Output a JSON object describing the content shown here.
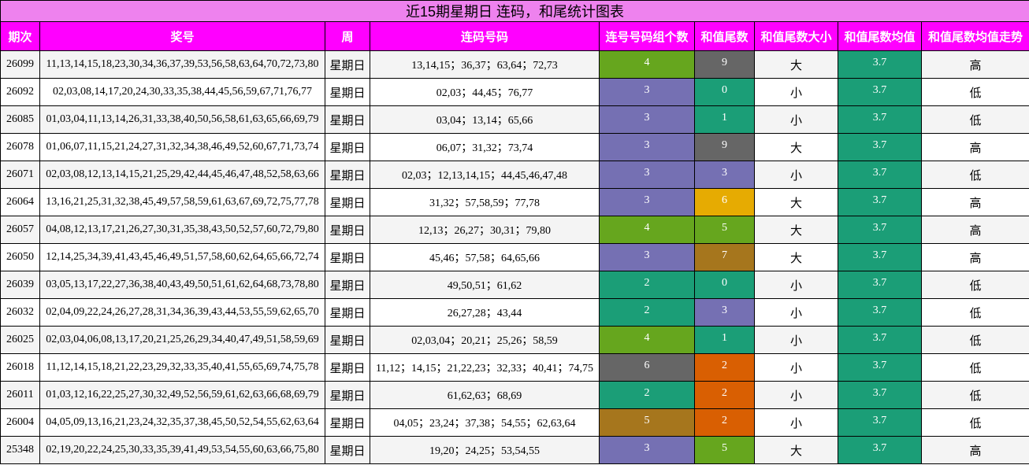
{
  "title": "近15期星期日 连码，和尾统计图表",
  "table": {
    "headers": [
      "期次",
      "奖号",
      "周",
      "连码号码",
      "连号号码组个数",
      "和值尾数",
      "和值尾数大小",
      "和值尾数均值",
      "和值尾数均值走势"
    ],
    "avg_color": "#1b9e77",
    "rows": [
      {
        "issue": "26099",
        "numbers": "11,13,14,15,18,23,30,34,36,37,39,53,56,58,63,64,70,72,73,80",
        "week": "星期日",
        "consecutive": "13,14,15；36,37；63,64；72,73",
        "count": 4,
        "count_color": "#66a61e",
        "tail": 9,
        "tail_color": "#666666",
        "size": "大",
        "avg": 3.7,
        "trend": "高"
      },
      {
        "issue": "26092",
        "numbers": "02,03,08,14,17,20,24,30,33,35,38,44,45,56,59,67,71,76,77",
        "week": "星期日",
        "consecutive": "02,03；44,45；76,77",
        "count": 3,
        "count_color": "#7570b3",
        "tail": 0,
        "tail_color": "#1b9e77",
        "size": "小",
        "avg": 3.7,
        "trend": "低"
      },
      {
        "issue": "26085",
        "numbers": "01,03,04,11,13,14,26,31,33,38,40,50,56,58,61,63,65,66,69,79",
        "week": "星期日",
        "consecutive": "03,04；13,14；65,66",
        "count": 3,
        "count_color": "#7570b3",
        "tail": 1,
        "tail_color": "#1b9e77",
        "size": "小",
        "avg": 3.7,
        "trend": "低"
      },
      {
        "issue": "26078",
        "numbers": "01,06,07,11,15,21,24,27,31,32,34,38,46,49,52,60,67,71,73,74",
        "week": "星期日",
        "consecutive": "06,07；31,32；73,74",
        "count": 3,
        "count_color": "#7570b3",
        "tail": 9,
        "tail_color": "#666666",
        "size": "大",
        "avg": 3.7,
        "trend": "高"
      },
      {
        "issue": "26071",
        "numbers": "02,03,08,12,13,14,15,21,25,29,42,44,45,46,47,48,52,58,63,66",
        "week": "星期日",
        "consecutive": "02,03；12,13,14,15；44,45,46,47,48",
        "count": 3,
        "count_color": "#7570b3",
        "tail": 3,
        "tail_color": "#7570b3",
        "size": "小",
        "avg": 3.7,
        "trend": "低"
      },
      {
        "issue": "26064",
        "numbers": "13,16,21,25,31,32,38,45,49,57,58,59,61,63,67,69,72,75,77,78",
        "week": "星期日",
        "consecutive": "31,32；57,58,59；77,78",
        "count": 3,
        "count_color": "#7570b3",
        "tail": 6,
        "tail_color": "#e6ab02",
        "size": "大",
        "avg": 3.7,
        "trend": "高"
      },
      {
        "issue": "26057",
        "numbers": "04,08,12,13,17,21,26,27,30,31,35,38,43,50,52,57,60,72,79,80",
        "week": "星期日",
        "consecutive": "12,13；26,27；30,31；79,80",
        "count": 4,
        "count_color": "#66a61e",
        "tail": 5,
        "tail_color": "#66a61e",
        "size": "大",
        "avg": 3.7,
        "trend": "高"
      },
      {
        "issue": "26050",
        "numbers": "12,14,25,34,39,41,43,45,46,49,51,57,58,60,62,64,65,66,72,74",
        "week": "星期日",
        "consecutive": "45,46；57,58；64,65,66",
        "count": 3,
        "count_color": "#7570b3",
        "tail": 7,
        "tail_color": "#a6761d",
        "size": "大",
        "avg": 3.7,
        "trend": "高"
      },
      {
        "issue": "26039",
        "numbers": "03,05,13,17,22,27,36,38,40,43,49,50,51,61,62,64,68,73,78,80",
        "week": "星期日",
        "consecutive": "49,50,51；61,62",
        "count": 2,
        "count_color": "#1b9e77",
        "tail": 0,
        "tail_color": "#1b9e77",
        "size": "小",
        "avg": 3.7,
        "trend": "低"
      },
      {
        "issue": "26032",
        "numbers": "02,04,09,22,24,26,27,28,31,34,36,39,43,44,53,55,59,62,65,70",
        "week": "星期日",
        "consecutive": "26,27,28；43,44",
        "count": 2,
        "count_color": "#1b9e77",
        "tail": 3,
        "tail_color": "#7570b3",
        "size": "小",
        "avg": 3.7,
        "trend": "低"
      },
      {
        "issue": "26025",
        "numbers": "02,03,04,06,08,13,17,20,21,25,26,29,34,40,47,49,51,58,59,69",
        "week": "星期日",
        "consecutive": "02,03,04；20,21；25,26；58,59",
        "count": 4,
        "count_color": "#66a61e",
        "tail": 1,
        "tail_color": "#1b9e77",
        "size": "小",
        "avg": 3.7,
        "trend": "低"
      },
      {
        "issue": "26018",
        "numbers": "11,12,14,15,18,21,22,23,29,32,33,35,40,41,55,65,69,74,75,78",
        "week": "星期日",
        "consecutive": "11,12；14,15；21,22,23；32,33；40,41；74,75",
        "count": 6,
        "count_color": "#666666",
        "tail": 2,
        "tail_color": "#d95f02",
        "size": "小",
        "avg": 3.7,
        "trend": "低"
      },
      {
        "issue": "26011",
        "numbers": "01,03,12,16,22,25,27,30,32,49,52,56,59,61,62,63,66,68,69,79",
        "week": "星期日",
        "consecutive": "61,62,63；68,69",
        "count": 2,
        "count_color": "#1b9e77",
        "tail": 2,
        "tail_color": "#d95f02",
        "size": "小",
        "avg": 3.7,
        "trend": "低"
      },
      {
        "issue": "26004",
        "numbers": "04,05,09,13,16,21,23,24,32,35,37,38,45,50,52,54,55,62,63,64",
        "week": "星期日",
        "consecutive": "04,05；23,24；37,38；54,55；62,63,64",
        "count": 5,
        "count_color": "#a6761d",
        "tail": 2,
        "tail_color": "#d95f02",
        "size": "小",
        "avg": 3.7,
        "trend": "低"
      },
      {
        "issue": "25348",
        "numbers": "02,19,20,22,24,25,30,33,35,39,41,49,53,54,55,60,63,66,75,80",
        "week": "星期日",
        "consecutive": "19,20；24,25；53,54,55",
        "count": 3,
        "count_color": "#7570b3",
        "tail": 5,
        "tail_color": "#66a61e",
        "size": "大",
        "avg": 3.7,
        "trend": "高"
      }
    ]
  }
}
